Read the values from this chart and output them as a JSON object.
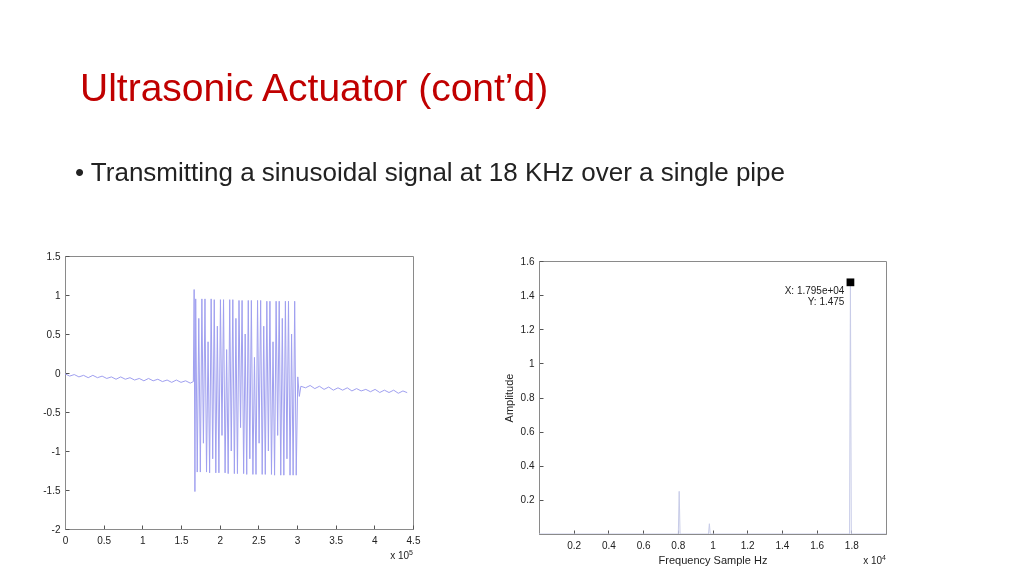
{
  "chart_data": [
    {
      "type": "line",
      "title": "Ultrasonic Actuator (cont’d)",
      "subtitle": "• Transmitting a sinusoidal signal at 18 KHz over a single pipe",
      "annotations": [
        "x 10$^{5}$"
      ],
      "color": "#a0a0f0",
      "x": [
        0,
        0.06,
        0.12,
        0.18,
        0.24,
        0.3,
        0.36,
        0.42,
        0.48,
        0.54,
        0.6,
        0.66,
        0.72,
        0.78,
        0.84,
        0.9,
        0.96,
        1.02,
        1.08,
        1.14,
        1.2,
        1.26,
        1.32,
        1.38,
        1.44,
        1.5,
        1.56,
        1.62,
        1.66,
        1.67,
        1.68,
        1.69,
        1.71,
        1.73,
        1.75,
        1.77,
        1.79,
        1.81,
        1.83,
        1.85,
        1.87,
        1.89,
        1.91,
        1.93,
        1.95,
        1.97,
        1.99,
        2.01,
        2.03,
        2.05,
        2.07,
        2.09,
        2.11,
        2.13,
        2.15,
        2.17,
        2.19,
        2.21,
        2.23,
        2.25,
        2.27,
        2.29,
        2.31,
        2.33,
        2.35,
        2.37,
        2.39,
        2.41,
        2.43,
        2.45,
        2.47,
        2.49,
        2.51,
        2.53,
        2.55,
        2.57,
        2.59,
        2.61,
        2.63,
        2.65,
        2.67,
        2.69,
        2.71,
        2.73,
        2.75,
        2.77,
        2.79,
        2.81,
        2.83,
        2.85,
        2.87,
        2.89,
        2.91,
        2.93,
        2.95,
        2.97,
        2.99,
        3.01,
        3.03,
        3.05,
        3.11,
        3.17,
        3.23,
        3.29,
        3.35,
        3.41,
        3.47,
        3.53,
        3.59,
        3.65,
        3.71,
        3.77,
        3.83,
        3.89,
        3.95,
        4.01,
        4.07,
        4.13,
        4.19,
        4.25,
        4.31,
        4.37,
        4.42
      ],
      "values": [
        -0.01,
        -0.04,
        -0.02,
        -0.05,
        -0.03,
        -0.06,
        -0.03,
        -0.06,
        -0.04,
        -0.07,
        -0.05,
        -0.08,
        -0.05,
        -0.08,
        -0.06,
        -0.09,
        -0.07,
        -0.1,
        -0.07,
        -0.1,
        -0.08,
        -0.11,
        -0.09,
        -0.12,
        -0.09,
        -0.12,
        -0.1,
        -0.13,
        -0.11,
        1.07,
        -1.52,
        0.95,
        -1.27,
        0.7,
        -1.27,
        0.95,
        -0.9,
        0.95,
        -1.27,
        0.4,
        -1.28,
        0.95,
        -1.1,
        0.94,
        -1.28,
        0.6,
        -1.28,
        0.94,
        -0.8,
        0.94,
        -1.28,
        0.3,
        -1.29,
        0.94,
        -1.0,
        0.94,
        -1.29,
        0.7,
        -1.29,
        0.93,
        -0.7,
        0.93,
        -1.29,
        0.5,
        -1.3,
        0.93,
        -1.1,
        0.93,
        -1.3,
        0.2,
        -1.3,
        0.93,
        -0.9,
        0.93,
        -1.3,
        0.6,
        -1.3,
        0.92,
        -1.0,
        0.92,
        -1.3,
        0.4,
        -1.31,
        0.92,
        -0.8,
        0.92,
        -1.31,
        0.7,
        -1.31,
        0.92,
        -1.1,
        0.92,
        -1.31,
        0.5,
        -1.31,
        0.92,
        -1.31,
        -0.05,
        -0.3,
        -0.17,
        -0.19,
        -0.16,
        -0.2,
        -0.17,
        -0.21,
        -0.18,
        -0.22,
        -0.19,
        -0.22,
        -0.19,
        -0.23,
        -0.2,
        -0.23,
        -0.21,
        -0.24,
        -0.21,
        -0.25,
        -0.22,
        -0.25,
        -0.22,
        -0.26,
        -0.23,
        -0.25
      ],
      "xlim": [
        0,
        4.5
      ],
      "xticks": [
        0,
        0.5,
        1,
        1.5,
        2,
        2.5,
        3,
        3.5,
        4,
        4.5
      ],
      "ylim": [
        -2,
        1.5
      ],
      "yticks": [
        -2,
        -1.5,
        -1,
        -0.5,
        0,
        0.5,
        1,
        1.5
      ]
    },
    {
      "type": "line",
      "xlabel": "Frequency Sample Hz",
      "ylabel": "Amplitude",
      "annotations": [
        "x 10$^{4}$",
        {
          "text": "X: 1.795e+04",
          "x": 1.795,
          "y": 1.475
        },
        {
          "text": "Y: 1.475",
          "x": 1.795,
          "y": 1.475
        }
      ],
      "series": [
        {
          "color": "#c8cce8",
          "x": [
            0,
            0.803,
            0.808,
            0.813,
            0.977,
            0.982,
            0.987,
            1.79,
            1.795,
            1.8,
            2
          ],
          "values": [
            0,
            0,
            0.25,
            0,
            0,
            0.06,
            0,
            0,
            1.475,
            0,
            0
          ]
        },
        {
          "type": "scatter",
          "marker": "square",
          "color": "#000000",
          "x": [
            1.795
          ],
          "values": [
            1.475
          ]
        }
      ],
      "xlim": [
        0,
        2
      ],
      "xticks": [
        0.2,
        0.4,
        0.6,
        0.8,
        1,
        1.2,
        1.4,
        1.6,
        1.8
      ],
      "ylim": [
        0,
        1.6
      ],
      "yticks": [
        0.2,
        0.4,
        0.6,
        0.8,
        1,
        1.2,
        1.4,
        1.6
      ]
    }
  ]
}
